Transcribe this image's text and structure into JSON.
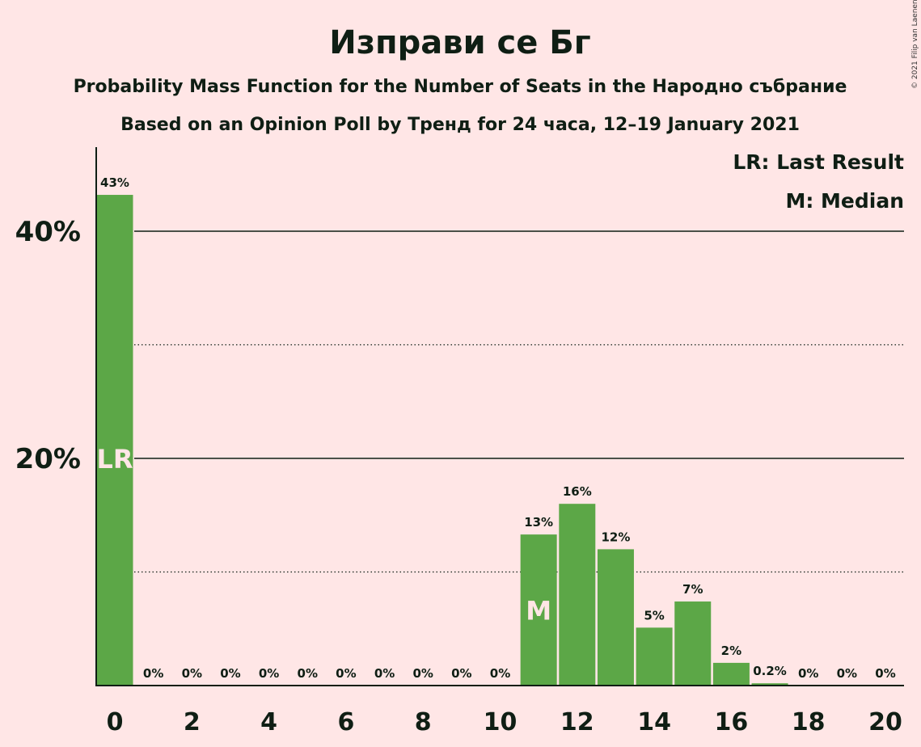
{
  "copyright": "© 2021 Filip van Laenen",
  "colors": {
    "background": "#FFE6E6",
    "bar": "#5CA747",
    "text": "#0F1E14"
  },
  "chart_data": {
    "type": "bar",
    "title": "Изправи се Бг",
    "subtitle": "Probability Mass Function for the Number of Seats in the Народно събрание",
    "subtitle2": "Based on an Opinion Poll by Тренд for 24 часа, 12–19 January 2021",
    "legend": [
      "LR: Last Result",
      "M: Median"
    ],
    "legend_position": "top-right",
    "x": [
      0,
      1,
      2,
      3,
      4,
      5,
      6,
      7,
      8,
      9,
      10,
      11,
      12,
      13,
      14,
      15,
      16,
      17,
      18,
      19,
      20
    ],
    "values": [
      43.2,
      0,
      0,
      0,
      0,
      0,
      0,
      0,
      0,
      0,
      0,
      13.3,
      16.0,
      12.0,
      5.1,
      7.4,
      2.0,
      0.2,
      0,
      0,
      0
    ],
    "data_labels": [
      "43%",
      "0%",
      "0%",
      "0%",
      "0%",
      "0%",
      "0%",
      "0%",
      "0%",
      "0%",
      "0%",
      "13%",
      "16%",
      "12%",
      "5%",
      "7%",
      "2%",
      "0.2%",
      "0%",
      "0%",
      "0%"
    ],
    "x_tick_labels": [
      "0",
      "2",
      "4",
      "6",
      "8",
      "10",
      "12",
      "14",
      "16",
      "18",
      "20"
    ],
    "y_ticks": [
      20,
      40
    ],
    "y_tick_labels": [
      "20%",
      "40%"
    ],
    "y_minor_gridlines": [
      10,
      30
    ],
    "ylim": [
      0,
      47
    ],
    "last_result_seat": 0,
    "last_result_label": "LR",
    "median_seat": 11,
    "median_label": "M"
  }
}
